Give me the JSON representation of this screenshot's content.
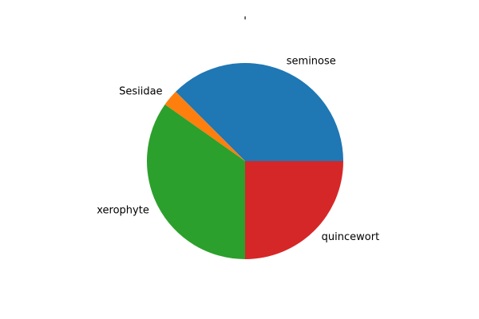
{
  "chart_data": {
    "type": "pie",
    "title": "'",
    "slices": [
      {
        "label": "seminose",
        "value": 37.5,
        "color": "#1f77b4"
      },
      {
        "label": "Sesiidae",
        "value": 2.7,
        "color": "#ff7f0e"
      },
      {
        "label": "xerophyte",
        "value": 34.8,
        "color": "#2ca02c"
      },
      {
        "label": "quincewort",
        "value": 25.0,
        "color": "#d62728"
      }
    ],
    "start_angle": 0,
    "direction": "counterclockwise",
    "legend": "none"
  }
}
